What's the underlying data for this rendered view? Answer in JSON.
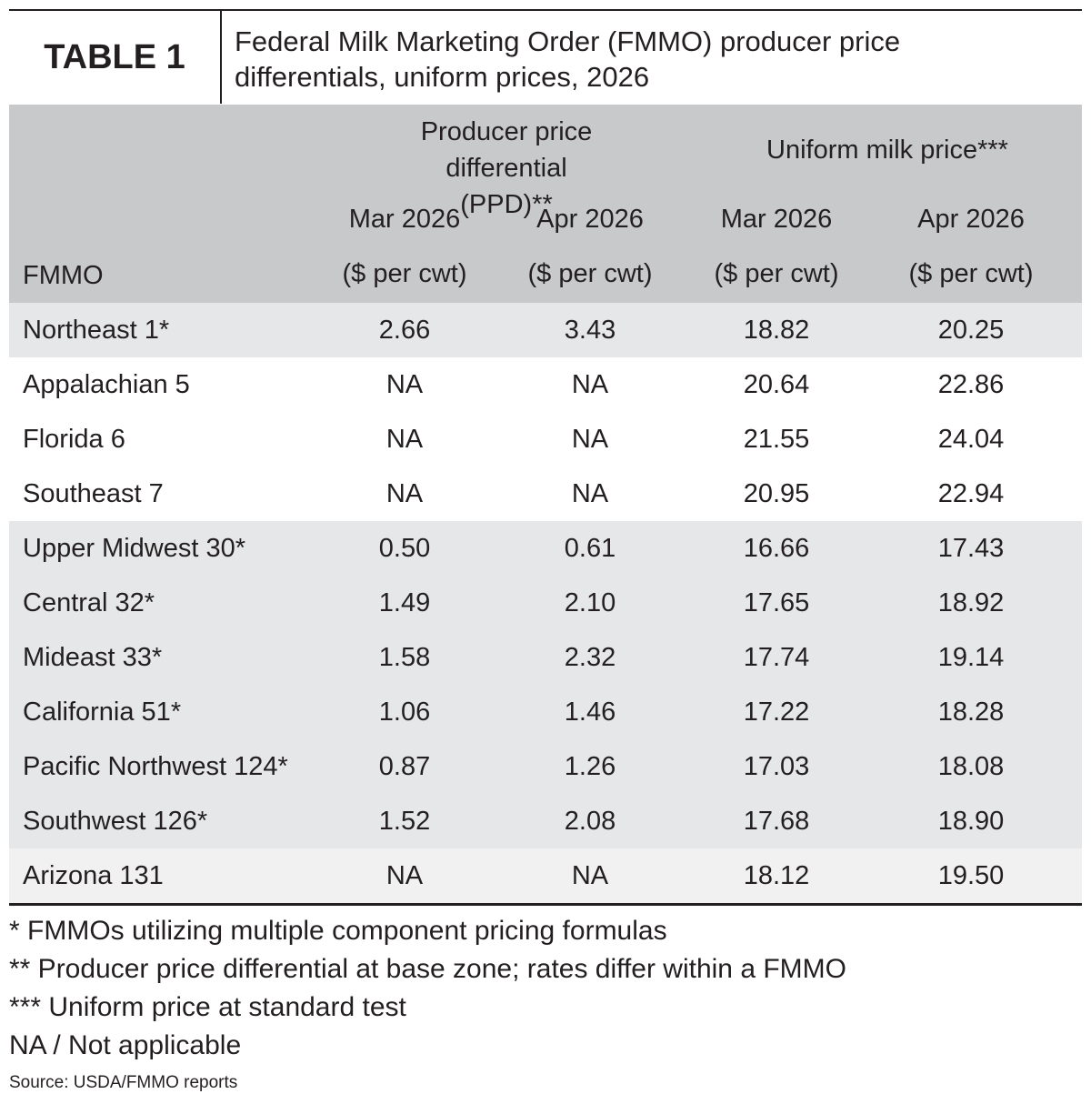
{
  "header": {
    "label": "TABLE 1",
    "title": "Federal Milk Marketing Order (FMMO) producer price differentials, uniform prices, 2026"
  },
  "table": {
    "groups": [
      "Producer price differential (PPD)**",
      "Uniform milk price***"
    ],
    "row_header": "FMMO",
    "columns": [
      {
        "period": "Mar 2026",
        "unit": "($ per cwt)"
      },
      {
        "period": "Apr 2026",
        "unit": "($ per cwt)"
      },
      {
        "period": "Mar 2026",
        "unit": "($ per cwt)"
      },
      {
        "period": "Apr 2026",
        "unit": "($ per cwt)"
      }
    ],
    "rows": [
      [
        "Northeast 1*",
        "2.66",
        "3.43",
        "18.82",
        "20.25"
      ],
      [
        "Appalachian 5",
        "NA",
        "NA",
        "20.64",
        "22.86"
      ],
      [
        "Florida 6",
        "NA",
        "NA",
        "21.55",
        "24.04"
      ],
      [
        "Southeast 7",
        "NA",
        "NA",
        "20.95",
        "22.94"
      ],
      [
        "Upper Midwest 30*",
        "0.50",
        "0.61",
        "16.66",
        "17.43"
      ],
      [
        "Central 32*",
        "1.49",
        "2.10",
        "17.65",
        "18.92"
      ],
      [
        "Mideast 33*",
        "1.58",
        "2.32",
        "17.74",
        "19.14"
      ],
      [
        "California 51*",
        "1.06",
        "1.46",
        "17.22",
        "18.28"
      ],
      [
        "Pacific Northwest 124*",
        "0.87",
        "1.26",
        "17.03",
        "18.08"
      ],
      [
        "Southwest 126*",
        "1.52",
        "2.08",
        "17.68",
        "18.90"
      ],
      [
        "Arizona 131",
        "NA",
        "NA",
        "18.12",
        "19.50"
      ]
    ]
  },
  "footnotes": [
    "* FMMOs utilizing multiple component pricing formulas",
    "** Producer price differential at base zone; rates differ within a FMMO",
    "*** Uniform price at standard test",
    "NA / Not applicable"
  ],
  "source": "Source: USDA/FMMO reports"
}
